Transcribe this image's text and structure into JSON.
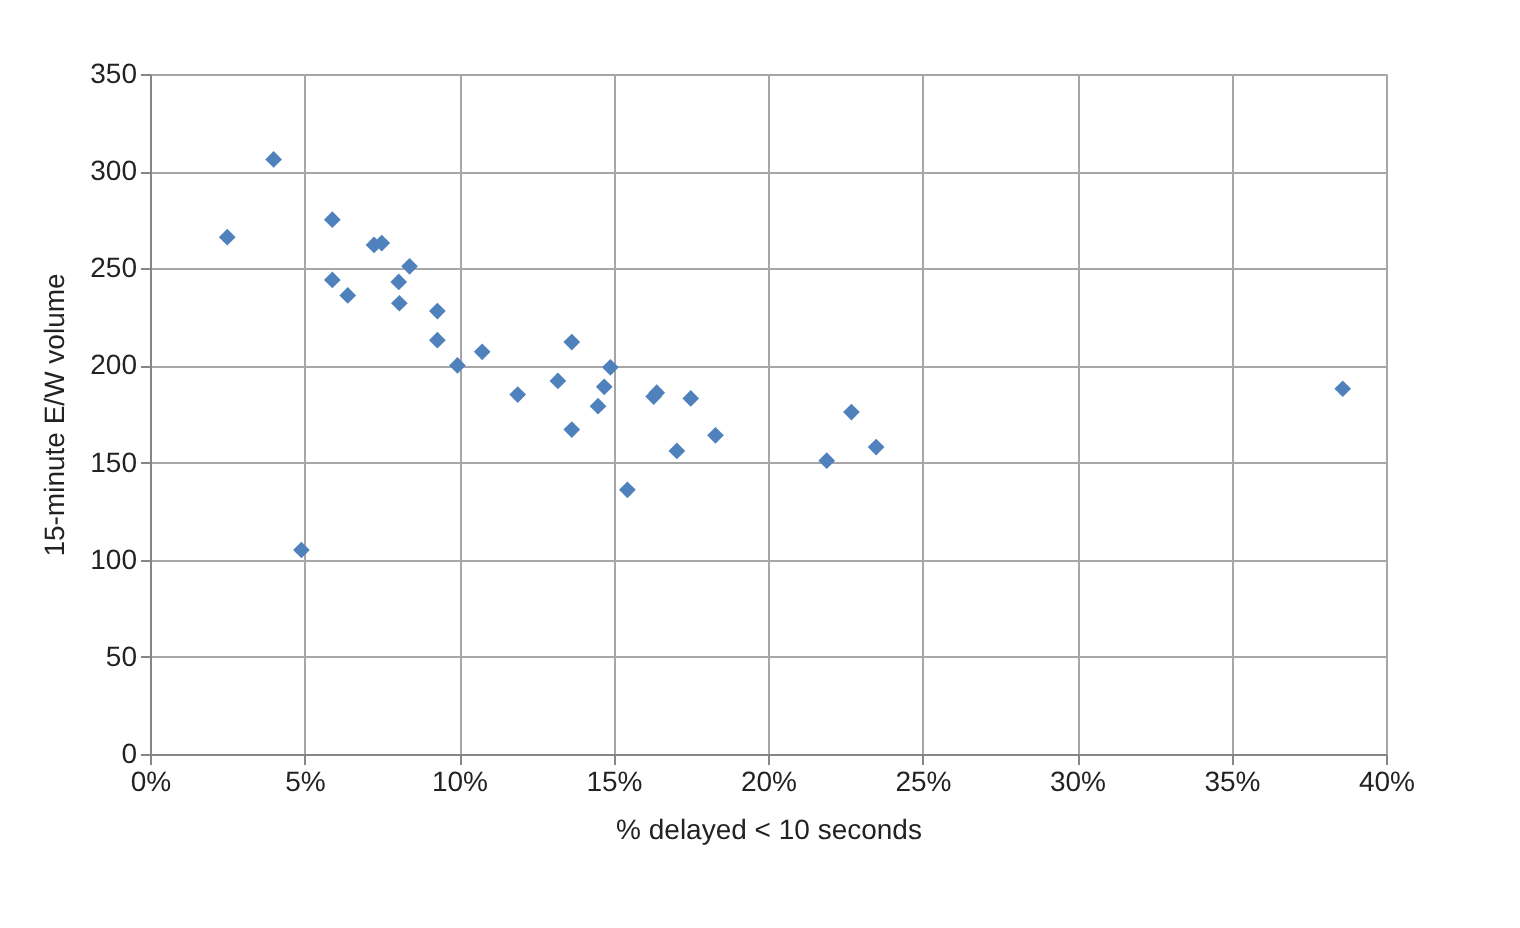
{
  "chart_data": {
    "type": "scatter",
    "xlabel": "% delayed < 10 seconds",
    "ylabel": "15-minute E/W volume",
    "x": [
      2.5,
      4.0,
      4.9,
      5.9,
      5.9,
      6.4,
      7.25,
      7.5,
      8.05,
      8.07,
      8.4,
      9.3,
      9.3,
      9.95,
      10.75,
      11.9,
      13.2,
      13.65,
      13.65,
      14.5,
      14.7,
      14.9,
      15.45,
      16.3,
      16.4,
      17.05,
      17.5,
      18.3,
      21.9,
      22.7,
      23.5,
      38.6
    ],
    "series": [
      {
        "color": "#4f81bd",
        "values": [
          266,
          306,
          105,
          275,
          244,
          236,
          262,
          263,
          243,
          232,
          251,
          228,
          213,
          200,
          207,
          185,
          192,
          212,
          167,
          179,
          189,
          199,
          136,
          184,
          186,
          156,
          183,
          164,
          151,
          176,
          158,
          188
        ]
      }
    ],
    "xlim": [
      0,
      40
    ],
    "xticks": [
      {
        "value": 0,
        "label": "0%"
      },
      {
        "value": 5,
        "label": "5%"
      },
      {
        "value": 10,
        "label": "10%"
      },
      {
        "value": 15,
        "label": "15%"
      },
      {
        "value": 20,
        "label": "20%"
      },
      {
        "value": 25,
        "label": "25%"
      },
      {
        "value": 30,
        "label": "30%"
      },
      {
        "value": 35,
        "label": "35%"
      },
      {
        "value": 40,
        "label": "40%"
      }
    ],
    "ylim": [
      0,
      350
    ],
    "yticks": [
      0,
      50,
      100,
      150,
      200,
      250,
      300,
      350
    ],
    "grid": true,
    "marker": "diamond"
  }
}
